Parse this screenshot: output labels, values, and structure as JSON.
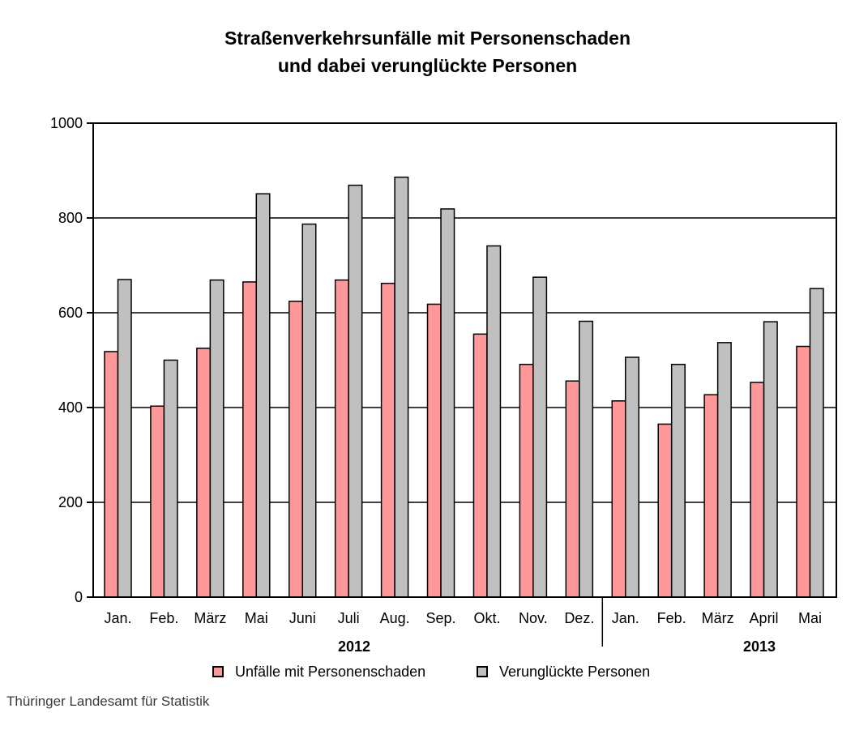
{
  "title": {
    "line1": "Straßenverkehrsunfälle mit Personenschaden",
    "line2": "und dabei verunglückte Personen"
  },
  "source": "Thüringer Landesamt für Statistik",
  "legend": [
    {
      "label": "Unfälle mit Personenschaden",
      "color": "#FF9999"
    },
    {
      "label": "Verunglückte Personen",
      "color": "#C0C0C0"
    }
  ],
  "chart_data": {
    "type": "bar",
    "title": "Straßenverkehrsunfälle mit Personenschaden und dabei verunglückte Personen",
    "categories": [
      "Jan.",
      "Feb.",
      "März",
      "Mai",
      "Juni",
      "Juli",
      "Aug.",
      "Sep.",
      "Okt.",
      "Nov.",
      "Dez.",
      "Jan.",
      "Feb.",
      "März",
      "April",
      "Mai"
    ],
    "groups": [
      {
        "label": "2012",
        "count": 11
      },
      {
        "label": "2013",
        "count": 5
      }
    ],
    "series": [
      {
        "name": "Unfälle mit Personenschaden",
        "color": "#FF9999",
        "values": [
          518,
          403,
          525,
          665,
          624,
          669,
          662,
          618,
          555,
          491,
          456,
          414,
          365,
          427,
          453,
          529
        ]
      },
      {
        "name": "Verunglückte Personen",
        "color": "#C0C0C0",
        "values": [
          670,
          500,
          669,
          851,
          787,
          869,
          886,
          819,
          741,
          675,
          582,
          506,
          491,
          537,
          581,
          651
        ]
      }
    ],
    "ylim": [
      0,
      1000
    ],
    "ytick_step": 200,
    "yticks": [
      0,
      200,
      400,
      600,
      800,
      1000
    ],
    "grid": true,
    "bar_outline_color": "#000000",
    "legend_position": "bottom"
  }
}
